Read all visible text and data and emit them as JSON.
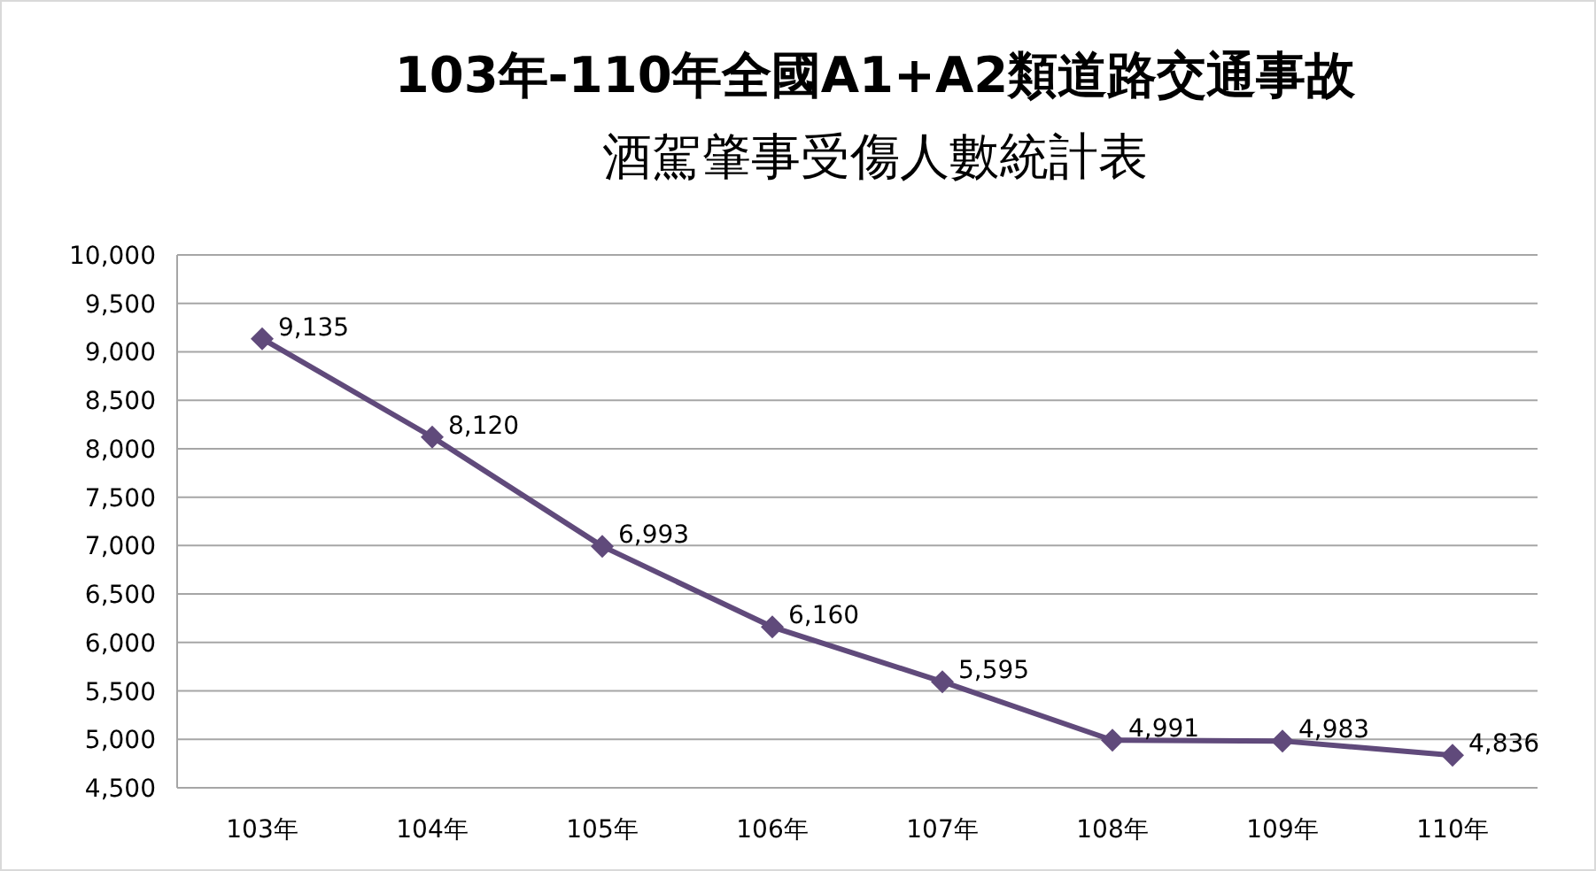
{
  "chart_data": {
    "type": "line",
    "title": "103年-110年全國A1+A2類道路交通事故",
    "subtitle": "酒駕肇事受傷人數統計表",
    "categories": [
      "103年",
      "104年",
      "105年",
      "106年",
      "107年",
      "108年",
      "109年",
      "110年"
    ],
    "series": [
      {
        "color": "#604a7b",
        "values": [
          9135,
          8120,
          6993,
          6160,
          5595,
          4991,
          4983,
          4836
        ],
        "value_labels": [
          "9,135",
          "8,120",
          "6,993",
          "6,160",
          "5,595",
          "4,991",
          "4,983",
          "4,836"
        ]
      }
    ],
    "ylim": [
      4500,
      10000
    ],
    "yticks": [
      {
        "value": 4500,
        "label": "4,500"
      },
      {
        "value": 5000,
        "label": "5,000"
      },
      {
        "value": 5500,
        "label": "5,500"
      },
      {
        "value": 6000,
        "label": "6,000"
      },
      {
        "value": 6500,
        "label": "6,500"
      },
      {
        "value": 7000,
        "label": "7,000"
      },
      {
        "value": 7500,
        "label": "7,500"
      },
      {
        "value": 8000,
        "label": "8,000"
      },
      {
        "value": 8500,
        "label": "8,500"
      },
      {
        "value": 9000,
        "label": "9,000"
      },
      {
        "value": 9500,
        "label": "9,500"
      },
      {
        "value": 10000,
        "label": "10,000"
      }
    ],
    "grid": "y",
    "marker": "diamond",
    "line_style": "solid"
  }
}
